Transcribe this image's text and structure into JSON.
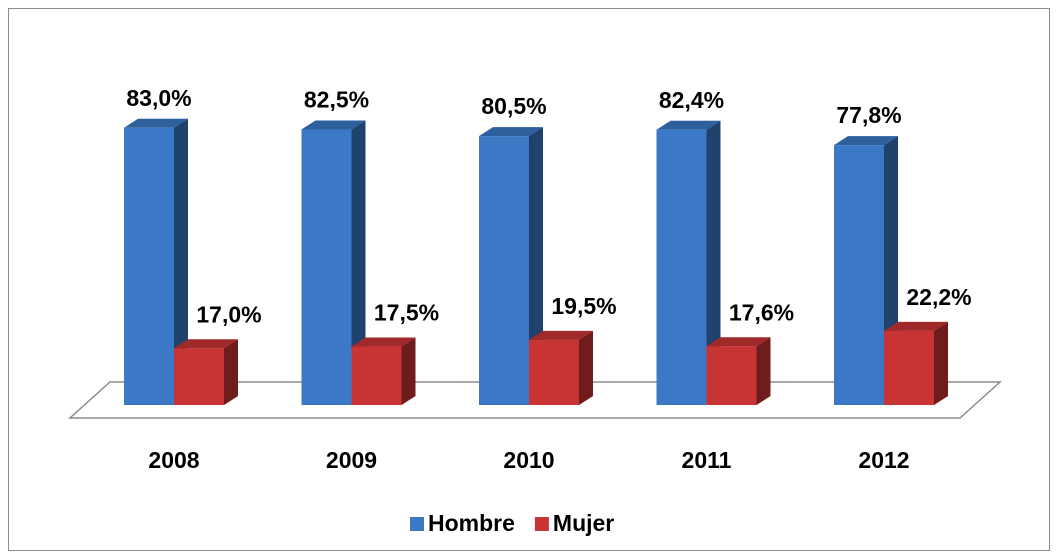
{
  "chart_data": {
    "type": "bar3d",
    "categories": [
      "2008",
      "2009",
      "2010",
      "2011",
      "2012"
    ],
    "series": [
      {
        "name": "Hombre",
        "color": "#3b78c6",
        "values": [
          83.0,
          82.5,
          80.5,
          82.4,
          77.8
        ],
        "value_labels": [
          "83,0%",
          "82,5%",
          "80,5%",
          "82,4%",
          "77,8%"
        ]
      },
      {
        "name": "Mujer",
        "color": "#c83434",
        "values": [
          17.0,
          17.5,
          19.5,
          17.6,
          22.2
        ],
        "value_labels": [
          "17,0%",
          "17,5%",
          "19,5%",
          "17,6%",
          "22,2%"
        ]
      }
    ],
    "ylim": [
      0,
      100
    ],
    "legend": "bottom"
  }
}
